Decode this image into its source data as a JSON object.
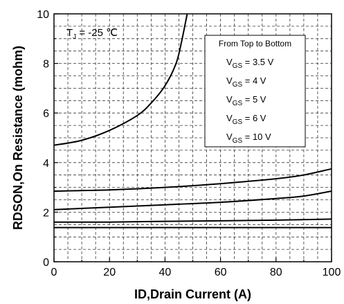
{
  "chart_data": {
    "type": "line",
    "xlabel": "ID,Drain Current (A)",
    "ylabel": "RDSON,On Resistance (mohm)",
    "xlim": [
      0,
      100
    ],
    "ylim": [
      0,
      10
    ],
    "x_ticks": [
      "0",
      "20",
      "40",
      "60",
      "80",
      "100"
    ],
    "y_ticks": [
      "0",
      "2",
      "4",
      "6",
      "8",
      "10"
    ],
    "grid": "dashed",
    "annotation": {
      "prefix": "T",
      "sub": "J",
      "suffix": " = -25 ℃"
    },
    "legend": {
      "position": "top-right",
      "heading": "From Top to Bottom",
      "entries": [
        {
          "main": "V",
          "sub": "GS",
          "rest": " = 3.5 V"
        },
        {
          "main": "V",
          "sub": "GS",
          "rest": " = 4 V"
        },
        {
          "main": "V",
          "sub": "GS",
          "rest": " = 5 V"
        },
        {
          "main": "V",
          "sub": "GS",
          "rest": " = 6 V"
        },
        {
          "main": "V",
          "sub": "GS",
          "rest": " = 10 V"
        }
      ]
    },
    "series": [
      {
        "x": [
          0,
          10,
          20,
          30,
          35,
          40,
          44,
          46,
          48
        ],
        "y": [
          4.7,
          4.9,
          5.3,
          5.9,
          6.4,
          7.1,
          8.0,
          8.9,
          10.0
        ]
      },
      {
        "x": [
          0,
          20,
          40,
          60,
          80,
          90,
          100
        ],
        "y": [
          2.85,
          2.9,
          3.0,
          3.15,
          3.35,
          3.5,
          3.75
        ]
      },
      {
        "x": [
          0,
          20,
          40,
          60,
          80,
          90,
          100
        ],
        "y": [
          2.1,
          2.2,
          2.3,
          2.4,
          2.55,
          2.65,
          2.85
        ]
      },
      {
        "x": [
          0,
          20,
          40,
          60,
          80,
          100
        ],
        "y": [
          1.6,
          1.6,
          1.63,
          1.65,
          1.68,
          1.72
        ]
      },
      {
        "x": [
          0,
          20,
          40,
          60,
          80,
          100
        ],
        "y": [
          1.38,
          1.38,
          1.38,
          1.38,
          1.38,
          1.38
        ]
      }
    ]
  }
}
